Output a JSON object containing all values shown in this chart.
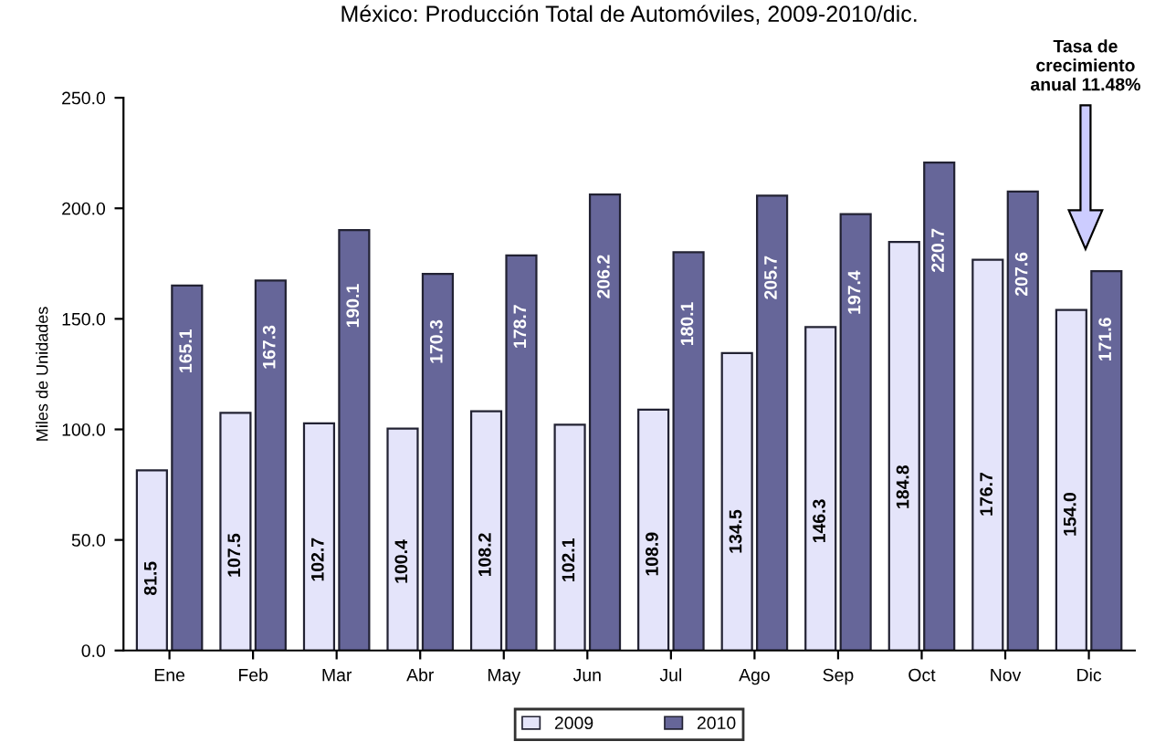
{
  "chart_data": {
    "type": "bar",
    "title": "México: Producción Total de Automóviles, 2009-2010/dic.",
    "ylabel": "Miles de Unidades",
    "categories": [
      "Ene",
      "Feb",
      "Mar",
      "Abr",
      "May",
      "Jun",
      "Jul",
      "Ago",
      "Sep",
      "Oct",
      "Nov",
      "Dic"
    ],
    "series": [
      {
        "name": "2009",
        "color": "#e4e4fa",
        "values": [
          81.5,
          107.5,
          102.7,
          100.4,
          108.2,
          102.1,
          108.9,
          134.5,
          146.3,
          184.8,
          176.7,
          154.0
        ],
        "value_labels": [
          "81.5",
          "107.5",
          "102.7",
          "100.4",
          "108.2",
          "102.1",
          "108.9",
          "134.5",
          "146.3",
          "184.8",
          "176.7",
          "154.0"
        ]
      },
      {
        "name": "2010",
        "color": "#666699",
        "values": [
          165.1,
          167.3,
          190.1,
          170.3,
          178.7,
          206.2,
          180.1,
          205.7,
          197.4,
          220.7,
          207.6,
          171.6
        ],
        "value_labels": [
          "165.1",
          "167.3",
          "190.1",
          "170.3",
          "178.7",
          "206.2",
          "180.1",
          "205.7",
          "197.4",
          "220.7",
          "207.6",
          "171.6"
        ]
      }
    ],
    "ylim": [
      0,
      250
    ],
    "yticks": [
      {
        "value": 0,
        "label": "0.0"
      },
      {
        "value": 50,
        "label": "50.0"
      },
      {
        "value": 100,
        "label": "100.0"
      },
      {
        "value": 150,
        "label": "150.0"
      },
      {
        "value": 200,
        "label": "200.0"
      },
      {
        "value": 250,
        "label": "250.0"
      }
    ],
    "annotations": [
      "Tasa de\ncrecimiento\nanual 11.48%"
    ],
    "grid": false,
    "legend": "bottom"
  }
}
